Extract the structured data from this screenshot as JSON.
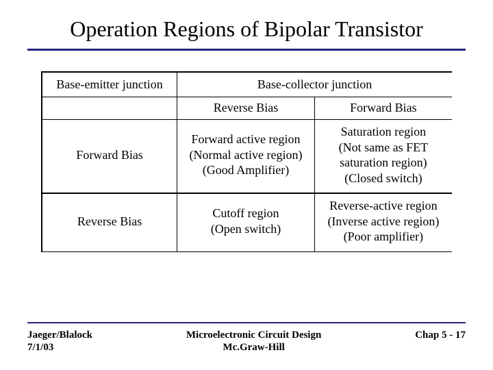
{
  "title": "Operation Regions of Bipolar Transistor",
  "colors": {
    "rule": "#24247a",
    "text": "#000000",
    "background": "#ffffff"
  },
  "typography": {
    "title_fontsize_pt": 24,
    "body_fontsize_pt": 14,
    "footer_fontsize_pt": 11,
    "font_family": "Times New Roman"
  },
  "table": {
    "header_left": "Base-emitter junction",
    "header_right": "Base-collector junction",
    "sub_left_blank": "",
    "sub_mid": "Reverse Bias",
    "sub_right": "Forward Bias",
    "rows": [
      {
        "left": "Forward Bias",
        "mid_lines": [
          "Forward active region",
          "(Normal active region)",
          "(Good Amplifier)"
        ],
        "right_lines": [
          "Saturation region",
          "(Not same as FET",
          "saturation region)",
          "(Closed switch)"
        ]
      },
      {
        "left": "Reverse Bias",
        "mid_lines": [
          "Cutoff region",
          "(Open switch)"
        ],
        "right_lines": [
          "Reverse-active region",
          "(Inverse active region)",
          "(Poor amplifier)"
        ]
      }
    ],
    "column_widths_pct": [
      33,
      33.5,
      33.5
    ],
    "border_color": "#000000"
  },
  "footer": {
    "left_line1": "Jaeger/Blalock",
    "left_line2": "7/1/03",
    "center_line1": "Microelectronic Circuit Design",
    "center_line2": "Mc.Graw-Hill",
    "right": "Chap 5 - 17"
  }
}
